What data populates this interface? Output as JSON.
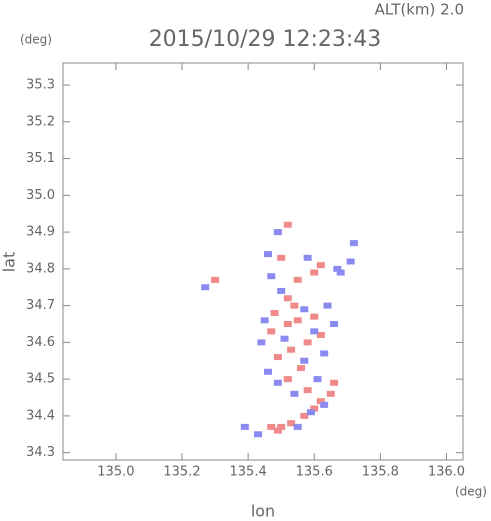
{
  "chart_data": {
    "type": "scatter",
    "title": "2015/10/29 12:23:43",
    "subtitle": "ALT(km) 2.0",
    "y_unit": "(deg)",
    "x_unit": "(deg)",
    "xlabel": "lon",
    "ylabel": "lat",
    "xlim": [
      134.84,
      136.05
    ],
    "ylim": [
      34.28,
      35.36
    ],
    "xticks": [
      {
        "value": 135.0,
        "label": "135.0"
      },
      135.2,
      135.4,
      135.6,
      135.8,
      {
        "value": 136.0,
        "label": "136.0"
      }
    ],
    "yticks": [
      34.3,
      34.4,
      34.5,
      34.6,
      34.7,
      34.8,
      34.9,
      {
        "value": 35.0,
        "label": "35.0"
      },
      35.1,
      35.2,
      35.3
    ],
    "series": [
      {
        "color": "#f08a8a",
        "x": [
          135.47,
          135.49,
          135.5,
          135.53,
          135.57,
          135.6,
          135.62,
          135.65,
          135.66,
          135.58,
          135.52,
          135.56,
          135.49,
          135.53,
          135.58,
          135.62,
          135.47,
          135.52,
          135.55,
          135.6,
          135.48,
          135.54,
          135.52,
          135.55,
          135.6,
          135.62,
          135.52,
          135.3,
          135.5
        ],
        "values": [
          34.37,
          34.36,
          34.37,
          34.38,
          34.4,
          34.42,
          34.44,
          34.46,
          34.49,
          34.47,
          34.5,
          34.53,
          34.56,
          34.58,
          34.6,
          34.62,
          34.63,
          34.65,
          34.66,
          34.67,
          34.68,
          34.7,
          34.72,
          34.77,
          34.79,
          34.81,
          34.92,
          34.77,
          34.83
        ]
      },
      {
        "color": "#8a8af0",
        "x": [
          135.39,
          135.43,
          135.55,
          135.59,
          135.63,
          135.54,
          135.49,
          135.61,
          135.46,
          135.57,
          135.63,
          135.44,
          135.51,
          135.6,
          135.66,
          135.45,
          135.57,
          135.64,
          135.5,
          135.47,
          135.46,
          135.58,
          135.67,
          135.71,
          135.72,
          135.49,
          135.27,
          135.68
        ],
        "values": [
          34.37,
          34.35,
          34.37,
          34.41,
          34.43,
          34.46,
          34.49,
          34.5,
          34.52,
          34.55,
          34.57,
          34.6,
          34.61,
          34.63,
          34.65,
          34.66,
          34.69,
          34.7,
          34.74,
          34.78,
          34.84,
          34.83,
          34.8,
          34.82,
          34.87,
          34.9,
          34.75,
          34.79
        ]
      }
    ]
  }
}
